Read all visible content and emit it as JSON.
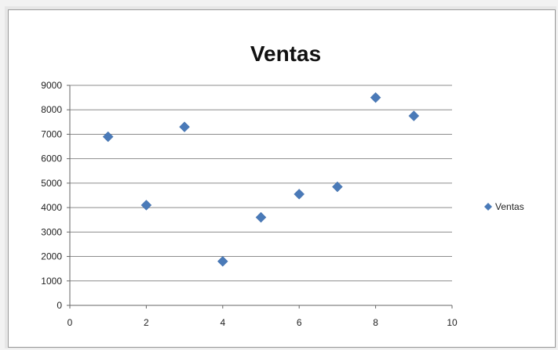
{
  "chart_data": {
    "type": "scatter",
    "title": "Ventas",
    "xlabel": "",
    "ylabel": "",
    "xlim": [
      0,
      10
    ],
    "ylim": [
      0,
      9000
    ],
    "x_ticks": [
      0,
      2,
      4,
      6,
      8,
      10
    ],
    "y_ticks": [
      0,
      1000,
      2000,
      3000,
      4000,
      5000,
      6000,
      7000,
      8000,
      9000
    ],
    "grid": "horizontal",
    "legend_position": "right",
    "marker": "diamond",
    "colors": {
      "series": "#4a7ab8",
      "grid": "#8c8c8c",
      "axis": "#666666"
    },
    "series": [
      {
        "name": "Ventas",
        "points": [
          {
            "x": 1,
            "y": 6900
          },
          {
            "x": 2,
            "y": 4100
          },
          {
            "x": 3,
            "y": 7300
          },
          {
            "x": 4,
            "y": 1800
          },
          {
            "x": 5,
            "y": 3600
          },
          {
            "x": 6,
            "y": 4550
          },
          {
            "x": 7,
            "y": 4850
          },
          {
            "x": 8,
            "y": 8500
          },
          {
            "x": 9,
            "y": 7750
          }
        ]
      }
    ]
  }
}
